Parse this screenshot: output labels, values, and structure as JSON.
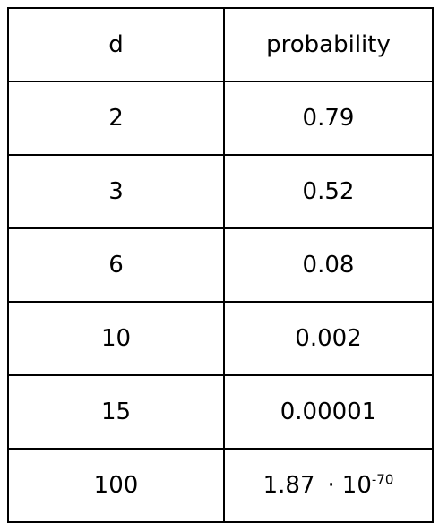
{
  "chart_data": {
    "type": "table",
    "columns": [
      "d",
      "probability"
    ],
    "rows": [
      {
        "d": "2",
        "probability": "0.79"
      },
      {
        "d": "3",
        "probability": "0.52"
      },
      {
        "d": "6",
        "probability": "0.08"
      },
      {
        "d": "10",
        "probability": "0.002"
      },
      {
        "d": "15",
        "probability": "0.00001"
      },
      {
        "d": "100",
        "probability": {
          "mantissa": "1.87",
          "dot": "·",
          "base": "10",
          "exponent": "-70"
        }
      }
    ]
  }
}
